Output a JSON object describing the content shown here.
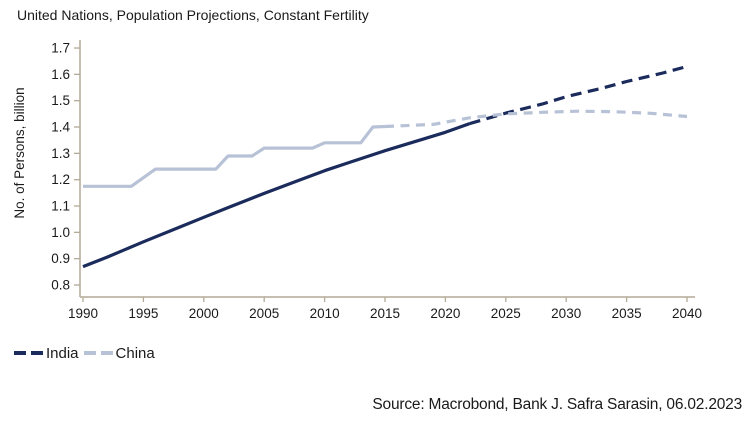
{
  "page": {
    "title": "United Nations, Population Projections, Constant Fertility",
    "source_caption": "Source: Macrobond, Bank J. Safra Sarasin, 06.02.2023"
  },
  "colors": {
    "india": "#1a2b5c",
    "china": "#b8c2d6",
    "axis": "#b3aa97",
    "text": "#1a1a1a",
    "background": "#ffffff"
  },
  "legend": {
    "items": [
      {
        "id": "india",
        "label": "India",
        "color": "#1a2b5c"
      },
      {
        "id": "china",
        "label": "China",
        "color": "#b8c2d6"
      }
    ]
  },
  "chart_data": {
    "type": "line",
    "title": "United Nations, Population Projections, Constant Fertility",
    "xlabel": "",
    "ylabel": "No. of Persons, billion",
    "xlim": [
      1990,
      2040
    ],
    "ylim": [
      0.8,
      1.7
    ],
    "x_ticks": [
      "1990",
      "1995",
      "2000",
      "2005",
      "2010",
      "2015",
      "2020",
      "2025",
      "2030",
      "2035",
      "2040"
    ],
    "y_ticks": [
      "0.8",
      "0.9",
      "1.0",
      "1.1",
      "1.2",
      "1.3",
      "1.4",
      "1.5",
      "1.6",
      "1.7"
    ],
    "grid": false,
    "legend_position": "bottom-left",
    "line_style_note": "solid = history, dashed = projection",
    "series": [
      {
        "name": "India",
        "color": "#1a2b5c",
        "dash_pattern": "11 6.5",
        "solid_points": [
          [
            1990,
            0.87
          ],
          [
            1992,
            0.906
          ],
          [
            1995,
            0.964
          ],
          [
            1998,
            1.02
          ],
          [
            2000,
            1.057
          ],
          [
            2002,
            1.094
          ],
          [
            2005,
            1.148
          ],
          [
            2008,
            1.2
          ],
          [
            2010,
            1.234
          ],
          [
            2012,
            1.265
          ],
          [
            2015,
            1.31
          ],
          [
            2018,
            1.352
          ],
          [
            2020,
            1.38
          ],
          [
            2022,
            1.413
          ]
        ],
        "dashed_points": [
          [
            2022,
            1.413
          ],
          [
            2025,
            1.453
          ],
          [
            2028,
            1.487
          ],
          [
            2030,
            1.515
          ],
          [
            2033,
            1.548
          ],
          [
            2035,
            1.573
          ],
          [
            2038,
            1.605
          ],
          [
            2040,
            1.63
          ]
        ]
      },
      {
        "name": "China",
        "color": "#b8c2d6",
        "dash_pattern": "9 6.5",
        "solid_points": [
          [
            1990,
            1.175
          ],
          [
            1994,
            1.175
          ],
          [
            1996,
            1.24
          ],
          [
            2001,
            1.24
          ],
          [
            2002,
            1.29
          ],
          [
            2004,
            1.29
          ],
          [
            2005,
            1.32
          ],
          [
            2009,
            1.32
          ],
          [
            2010,
            1.34
          ],
          [
            2013,
            1.34
          ],
          [
            2014,
            1.4
          ],
          [
            2015,
            1.402
          ]
        ],
        "dashed_points": [
          [
            2015,
            1.402
          ],
          [
            2019,
            1.41
          ],
          [
            2022,
            1.435
          ],
          [
            2025,
            1.45
          ],
          [
            2028,
            1.456
          ],
          [
            2031,
            1.46
          ],
          [
            2034,
            1.458
          ],
          [
            2037,
            1.452
          ],
          [
            2040,
            1.44
          ]
        ]
      }
    ]
  }
}
